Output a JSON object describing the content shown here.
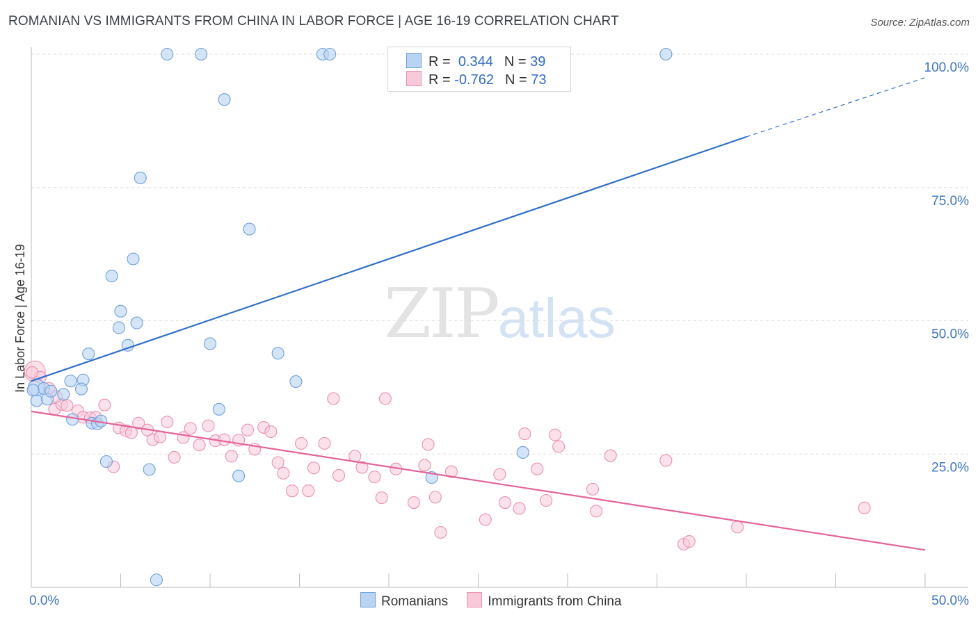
{
  "title": "ROMANIAN VS IMMIGRANTS FROM CHINA IN LABOR FORCE | AGE 16-19 CORRELATION CHART",
  "source": "Source: ZipAtlas.com",
  "watermark": {
    "zip": "ZIP",
    "atlas": "atlas"
  },
  "legend": {
    "rows": [
      {
        "r_label": "R =",
        "r_value": "0.344",
        "n_label": "N =",
        "n_value": "39"
      },
      {
        "r_label": "R =",
        "r_value": "-0.762",
        "n_label": "N =",
        "n_value": "73"
      }
    ]
  },
  "bottom_legend": {
    "series_a": "Romanians",
    "series_b": "Immigrants from China"
  },
  "colors": {
    "blue_fill": "#b9d3f3",
    "blue_stroke": "#6f9fdc",
    "blue_line": "#2f6fcc",
    "pink_fill": "#f8c9d8",
    "pink_stroke": "#ec8fb0",
    "pink_line": "#e3639a",
    "grid": "#dcdcdc"
  },
  "chart_data": {
    "type": "scatter",
    "title": "ROMANIAN VS IMMIGRANTS FROM CHINA IN LABOR FORCE | AGE 16-19 CORRELATION CHART",
    "xlabel": "",
    "ylabel": "In Labor Force | Age 16-19",
    "xlim": [
      0,
      50
    ],
    "ylim": [
      0,
      100
    ],
    "x_tick_labels": [
      {
        "value": 0,
        "label": "0.0%"
      },
      {
        "value": 50,
        "label": "50.0%"
      }
    ],
    "y_tick_labels": [
      {
        "value": 25,
        "label": "25.0%"
      },
      {
        "value": 50,
        "label": "50.0%"
      },
      {
        "value": 75,
        "label": "75.0%"
      },
      {
        "value": 100,
        "label": "100.0%"
      }
    ],
    "series": [
      {
        "name": "Romanians",
        "r": 0.344,
        "n": 39,
        "trend": {
          "x_start": 0,
          "y_start": 38.7,
          "x_solid_end": 40,
          "y_solid_end": 84.5,
          "x_end": 50,
          "y_end": 95.6
        },
        "points": [
          [
            0.3,
            37.5
          ],
          [
            0.3,
            35.0
          ],
          [
            0.7,
            37.3
          ],
          [
            0.9,
            35.3
          ],
          [
            1.1,
            36.8
          ],
          [
            1.8,
            36.2
          ],
          [
            2.2,
            38.7
          ],
          [
            2.3,
            31.5
          ],
          [
            2.9,
            38.9
          ],
          [
            2.8,
            37.2
          ],
          [
            3.2,
            43.8
          ],
          [
            3.4,
            30.8
          ],
          [
            3.7,
            30.7
          ],
          [
            3.9,
            31.2
          ],
          [
            4.2,
            23.6
          ],
          [
            4.5,
            58.4
          ],
          [
            4.9,
            48.7
          ],
          [
            5.0,
            51.8
          ],
          [
            5.4,
            45.4
          ],
          [
            5.7,
            61.6
          ],
          [
            5.9,
            49.6
          ],
          [
            6.1,
            76.8
          ],
          [
            6.6,
            22.1
          ],
          [
            7.0,
            1.4
          ],
          [
            7.6,
            100
          ],
          [
            9.5,
            100
          ],
          [
            10.0,
            45.7
          ],
          [
            10.5,
            33.4
          ],
          [
            10.8,
            91.5
          ],
          [
            11.6,
            20.9
          ],
          [
            12.2,
            67.2
          ],
          [
            13.8,
            43.9
          ],
          [
            14.8,
            38.6
          ],
          [
            16.3,
            100
          ],
          [
            16.7,
            100
          ],
          [
            22.4,
            20.6
          ],
          [
            27.5,
            25.3
          ],
          [
            35.5,
            100
          ],
          [
            0.1,
            37.0
          ]
        ]
      },
      {
        "name": "Immigrants from China",
        "r": -0.762,
        "n": 73,
        "trend": {
          "x_start": 0,
          "y_start": 33.0,
          "x_end": 50,
          "y_end": 7.0
        },
        "points": [
          [
            0.2,
            40.5
          ],
          [
            0.5,
            39.4
          ],
          [
            1.0,
            37.3
          ],
          [
            1.3,
            33.4
          ],
          [
            1.7,
            34.3
          ],
          [
            2.0,
            34.1
          ],
          [
            2.6,
            33.1
          ],
          [
            2.9,
            31.9
          ],
          [
            3.3,
            31.8
          ],
          [
            3.6,
            31.9
          ],
          [
            4.1,
            34.2
          ],
          [
            4.6,
            22.6
          ],
          [
            4.9,
            29.9
          ],
          [
            5.3,
            29.4
          ],
          [
            5.6,
            29.0
          ],
          [
            6.0,
            30.8
          ],
          [
            6.5,
            29.5
          ],
          [
            6.8,
            27.7
          ],
          [
            7.2,
            28.2
          ],
          [
            7.6,
            31.0
          ],
          [
            8.0,
            24.4
          ],
          [
            8.5,
            28.1
          ],
          [
            8.9,
            29.8
          ],
          [
            9.4,
            26.7
          ],
          [
            9.9,
            30.3
          ],
          [
            10.3,
            27.5
          ],
          [
            10.8,
            27.7
          ],
          [
            11.2,
            24.6
          ],
          [
            11.6,
            27.6
          ],
          [
            12.1,
            29.5
          ],
          [
            12.5,
            25.9
          ],
          [
            13.0,
            30.0
          ],
          [
            13.4,
            29.2
          ],
          [
            13.8,
            23.4
          ],
          [
            14.1,
            21.4
          ],
          [
            14.6,
            18.1
          ],
          [
            15.1,
            27.0
          ],
          [
            15.5,
            18.1
          ],
          [
            15.8,
            22.4
          ],
          [
            16.4,
            27.0
          ],
          [
            16.9,
            35.4
          ],
          [
            17.2,
            21.0
          ],
          [
            18.1,
            24.6
          ],
          [
            18.5,
            22.5
          ],
          [
            19.2,
            20.7
          ],
          [
            19.6,
            16.8
          ],
          [
            19.8,
            35.4
          ],
          [
            20.4,
            22.2
          ],
          [
            21.4,
            15.9
          ],
          [
            22.0,
            22.9
          ],
          [
            22.2,
            26.8
          ],
          [
            22.6,
            16.9
          ],
          [
            22.9,
            10.3
          ],
          [
            23.5,
            21.7
          ],
          [
            25.4,
            12.7
          ],
          [
            26.2,
            21.2
          ],
          [
            26.5,
            15.9
          ],
          [
            27.3,
            14.8
          ],
          [
            27.6,
            28.8
          ],
          [
            28.3,
            22.2
          ],
          [
            28.8,
            16.3
          ],
          [
            29.3,
            28.6
          ],
          [
            29.5,
            26.4
          ],
          [
            31.4,
            18.4
          ],
          [
            31.6,
            14.3
          ],
          [
            32.4,
            24.7
          ],
          [
            35.5,
            23.8
          ],
          [
            36.5,
            8.1
          ],
          [
            36.8,
            8.6
          ],
          [
            39.5,
            11.3
          ],
          [
            46.6,
            14.9
          ],
          [
            0.05,
            40.3
          ],
          [
            1.4,
            35.8
          ]
        ]
      }
    ]
  }
}
